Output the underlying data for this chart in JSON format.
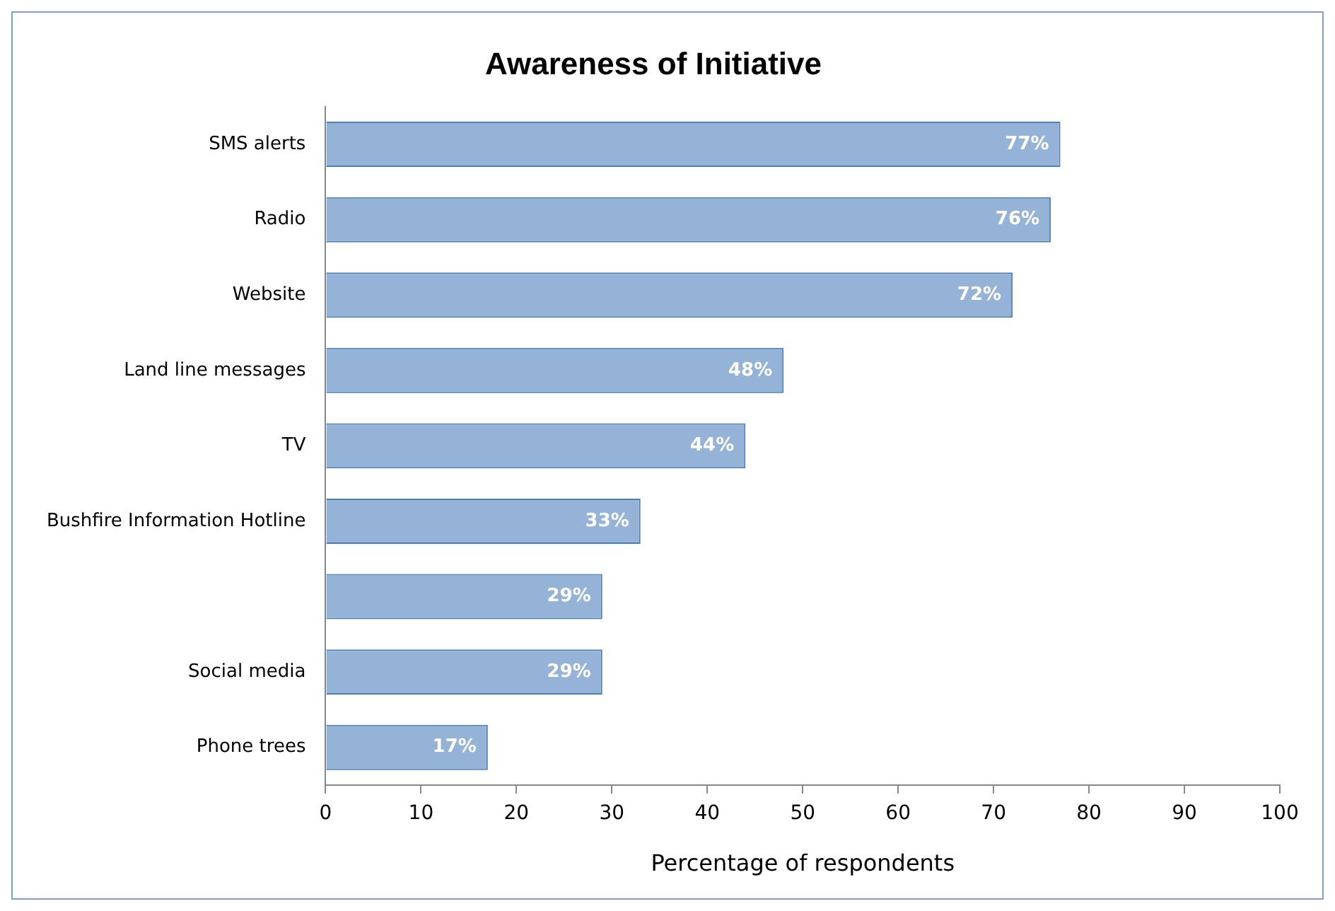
{
  "chart_data": {
    "type": "bar",
    "orientation": "horizontal",
    "title": "Awareness of Initiative",
    "xlabel": "Percentage of respondents",
    "categories": [
      "SMS alerts",
      "Radio",
      "Website",
      "Land line messages",
      "TV",
      "Bushfire Information Hotline",
      null,
      "Social media",
      "Phone trees"
    ],
    "values": [
      77,
      76,
      72,
      48,
      44,
      33,
      29,
      29,
      17
    ],
    "value_labels": [
      "77%",
      "76%",
      "72%",
      "48%",
      "44%",
      "33%",
      "29%",
      "29%",
      "17%"
    ],
    "color": "#95b3d7",
    "xlim": [
      0,
      100
    ],
    "xticks": [
      0,
      10,
      20,
      30,
      40,
      50,
      60,
      70,
      80,
      90,
      100
    ],
    "grid": false,
    "legend": false
  }
}
